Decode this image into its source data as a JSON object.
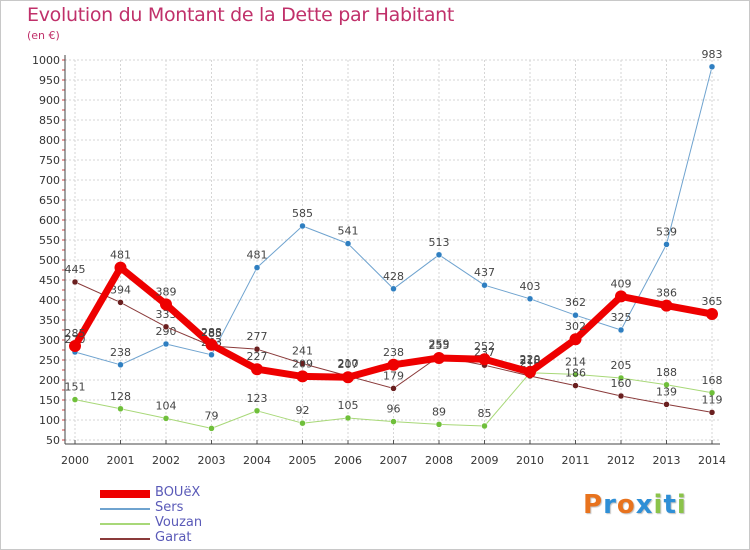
{
  "header": {
    "title": "Evolution du Montant de la Dette par Habitant",
    "unit": "(en €)"
  },
  "logo": {
    "text": "Proxiti",
    "colors": [
      "#e8731e",
      "#2f8fd6",
      "#e8731e",
      "#2f8fd6",
      "#8bc34a",
      "#2f8fd6",
      "#8bc34a"
    ]
  },
  "chart_data": {
    "type": "line",
    "title": "Evolution du Montant de la Dette par Habitant",
    "ylabel": "(en €)",
    "xlabel": "",
    "ylim": [
      50,
      1000
    ],
    "yticks": [
      50,
      100,
      150,
      200,
      250,
      300,
      350,
      400,
      450,
      500,
      550,
      600,
      650,
      700,
      750,
      800,
      850,
      900,
      950,
      1000
    ],
    "x": [
      "2000",
      "2001",
      "2002",
      "2003",
      "2004",
      "2005",
      "2006",
      "2007",
      "2008",
      "2009",
      "2010",
      "2011",
      "2012",
      "2013",
      "2014"
    ],
    "grid": true,
    "legend_position": "bottom-left",
    "series": [
      {
        "name": "Sers",
        "color": "#6fa3cf",
        "marker": "#2f7fc1",
        "width": 1,
        "values": [
          270,
          238,
          290,
          263,
          481,
          585,
          541,
          428,
          513,
          437,
          403,
          362,
          325,
          539,
          983
        ],
        "labels": [
          "270",
          "238",
          "290",
          "263",
          "481",
          "585",
          "541",
          "428",
          "513",
          "437",
          "403",
          "362",
          "325",
          "539",
          "983"
        ]
      },
      {
        "name": "Vouzan",
        "color": "#a8d878",
        "marker": "#6fbf3a",
        "width": 1,
        "values": [
          151,
          128,
          104,
          79,
          123,
          92,
          105,
          96,
          89,
          85,
          218,
          214,
          205,
          188,
          168
        ],
        "labels": [
          "151",
          "128",
          "104",
          "79",
          "123",
          "92",
          "105",
          "96",
          "89",
          "85",
          "218",
          "214",
          "205",
          "188",
          "168"
        ]
      },
      {
        "name": "Garat",
        "color": "#8a3a3a",
        "marker": "#6a1f1f",
        "width": 1,
        "values": [
          445,
          394,
          333,
          285,
          277,
          241,
          210,
          179,
          259,
          237,
          210,
          186,
          160,
          139,
          119
        ],
        "labels": [
          "445",
          "394",
          "333",
          "285",
          "277",
          "241",
          "210",
          "179",
          "259",
          "237",
          "210",
          "186",
          "160",
          "139",
          "119"
        ]
      },
      {
        "name": "BOUëX",
        "color": "#ee0000",
        "marker": "#ee0000",
        "width": 7,
        "values": [
          285,
          481,
          389,
          288,
          227,
          209,
          207,
          238,
          255,
          252,
          220,
          302,
          409,
          386,
          365
        ],
        "labels": [
          "285",
          "481",
          "389",
          "288",
          "227",
          "209",
          "207",
          "238",
          "255",
          "252",
          "220",
          "302",
          "409",
          "386",
          "365"
        ]
      }
    ],
    "legend_order": [
      "BOUëX",
      "Sers",
      "Vouzan",
      "Garat"
    ]
  }
}
